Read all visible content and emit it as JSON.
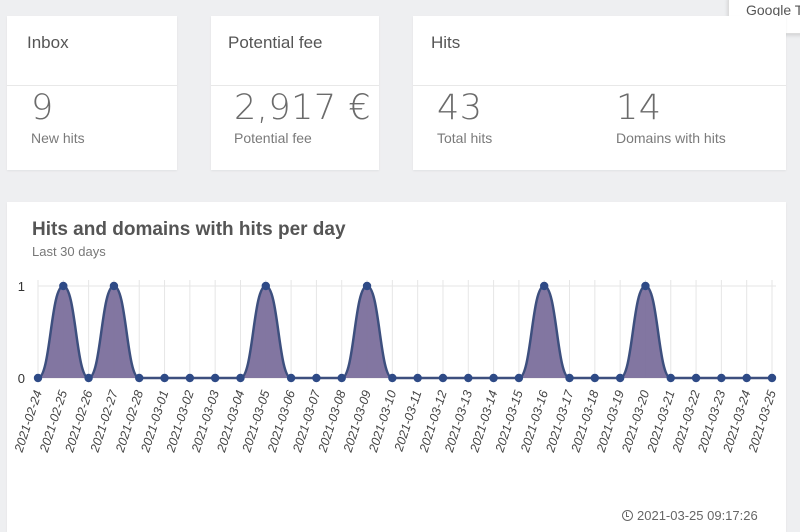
{
  "google_badge": "Google T",
  "inbox": {
    "title": "Inbox",
    "value": "9",
    "label": "New hits"
  },
  "fee": {
    "title": "Potential fee",
    "value": "2,917 €",
    "label": "Potential fee"
  },
  "hits": {
    "title": "Hits",
    "total_value": "43",
    "total_label": "Total hits",
    "domains_value": "14",
    "domains_label": "Domains with hits"
  },
  "chart_panel": {
    "title": "Hits and domains with hits per day",
    "subtitle": "Last 30 days",
    "timestamp": "2021-03-25 09:17:26"
  },
  "colors": {
    "area_fill": "#7b6f9c",
    "line": "#3d4f7e",
    "point": "#2e4a86",
    "grid": "#e6e6e6"
  },
  "chart_data": {
    "type": "area",
    "categories": [
      "2021-02-24",
      "2021-02-25",
      "2021-02-26",
      "2021-02-27",
      "2021-02-28",
      "2021-03-01",
      "2021-03-02",
      "2021-03-03",
      "2021-03-04",
      "2021-03-05",
      "2021-03-06",
      "2021-03-07",
      "2021-03-08",
      "2021-03-09",
      "2021-03-10",
      "2021-03-11",
      "2021-03-12",
      "2021-03-13",
      "2021-03-14",
      "2021-03-15",
      "2021-03-16",
      "2021-03-17",
      "2021-03-18",
      "2021-03-19",
      "2021-03-20",
      "2021-03-21",
      "2021-03-22",
      "2021-03-23",
      "2021-03-24",
      "2021-03-25"
    ],
    "values": [
      0,
      1,
      0,
      1,
      0,
      0,
      0,
      0,
      0,
      1,
      0,
      0,
      0,
      1,
      0,
      0,
      0,
      0,
      0,
      0,
      1,
      0,
      0,
      0,
      1,
      0,
      0,
      0,
      0,
      0
    ],
    "yticks": [
      0,
      1
    ],
    "ylim": [
      0,
      1
    ],
    "grid": true
  }
}
